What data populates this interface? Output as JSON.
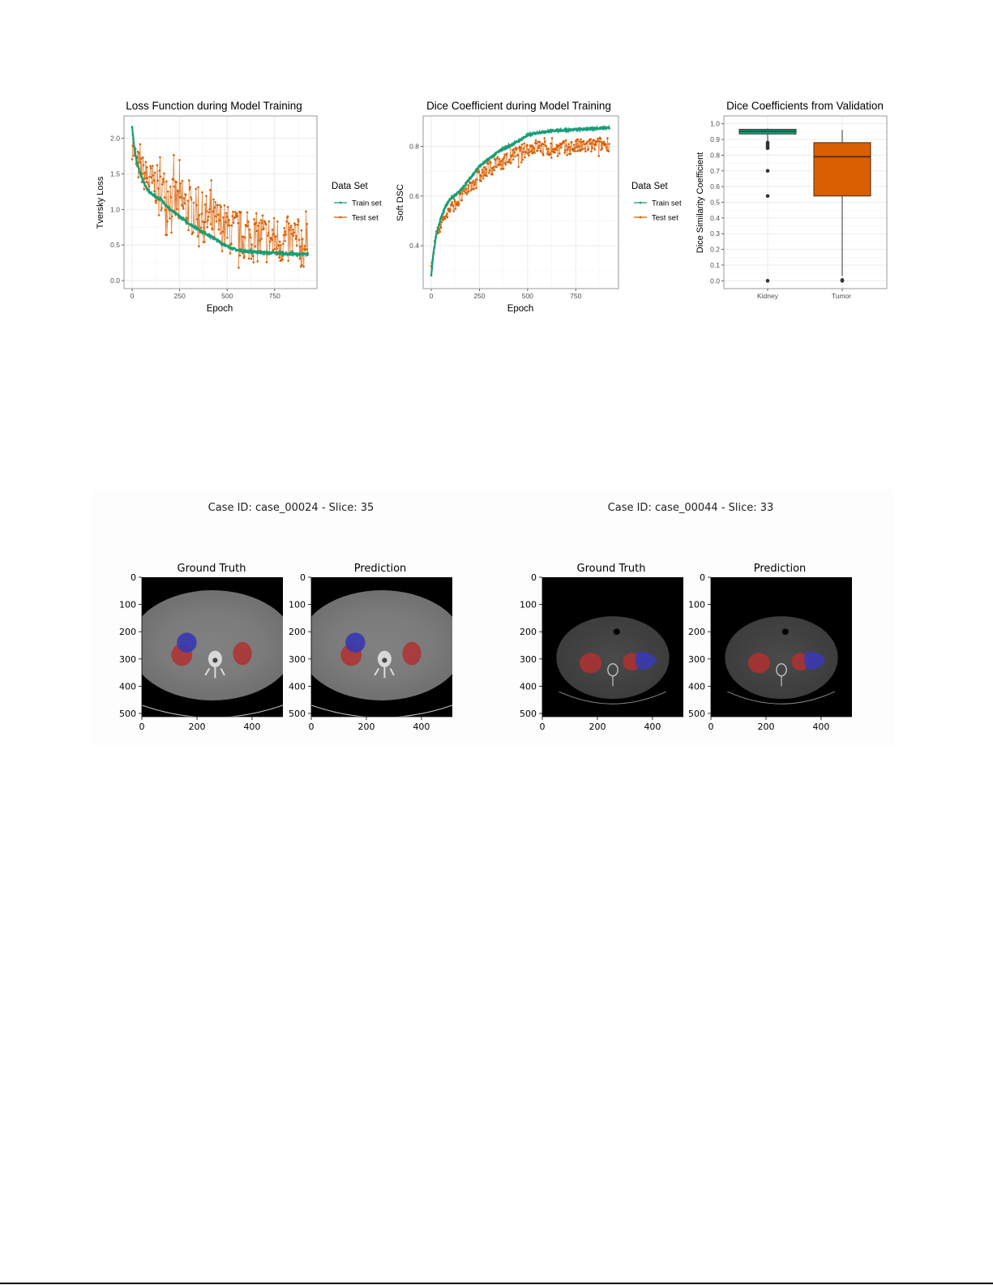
{
  "colors": {
    "train": "#1b9e77",
    "test": "#d95f02",
    "panel_border": "#999999",
    "grid_major": "#ebebeb",
    "grid_minor": "#f4f4f4",
    "axis_text": "#4d4d4d",
    "kidney_mask": "#b03030",
    "tumor_mask": "#3a3ab0"
  },
  "figure_top": {
    "charts": [
      {
        "title": "Loss Function during Model Training",
        "xlabel": "Epoch",
        "ylabel": "Tversky Loss",
        "legend_title": "Data Set",
        "legend": [
          "Train set",
          "Test set"
        ]
      },
      {
        "title": "Dice Coefficient during Model Training",
        "xlabel": "Epoch",
        "ylabel": "Soft DSC",
        "legend_title": "Data Set",
        "legend": [
          "Train set",
          "Test set"
        ]
      },
      {
        "title": "Dice Coefficients from Validation",
        "xlabel": "",
        "ylabel": "Dice Similarity Coefficient",
        "categories": [
          "Kidney",
          "Tumor"
        ]
      }
    ]
  },
  "figure_bottom": {
    "cases": [
      {
        "title": "Case ID: case_00024 - Slice: 35",
        "panels": [
          "Ground Truth",
          "Prediction"
        ],
        "yticks": [
          "0",
          "100",
          "200",
          "300",
          "400",
          "500"
        ],
        "xticks": [
          "0",
          "200",
          "400"
        ]
      },
      {
        "title": "Case ID: case_00044 - Slice: 33",
        "panels": [
          "Ground Truth",
          "Prediction"
        ],
        "yticks": [
          "0",
          "100",
          "200",
          "300",
          "400",
          "500"
        ],
        "xticks": [
          "0",
          "200",
          "400"
        ]
      }
    ]
  },
  "chart_data": [
    {
      "type": "line",
      "title": "Loss Function during Model Training",
      "xlabel": "Epoch",
      "ylabel": "Tversky Loss",
      "xlim": [
        0,
        930
      ],
      "ylim": [
        0,
        2.2
      ],
      "xticks": [
        0,
        250,
        500,
        750
      ],
      "yticks": [
        0.0,
        0.5,
        1.0,
        1.5,
        2.0
      ],
      "grid": true,
      "legend_title": "Data Set",
      "legend_position": "right",
      "series": [
        {
          "name": "Train set",
          "x": [
            0,
            10,
            25,
            50,
            75,
            100,
            150,
            200,
            250,
            300,
            350,
            400,
            450,
            500,
            550,
            600,
            650,
            700,
            750,
            800,
            850,
            900,
            925
          ],
          "values": [
            2.17,
            1.9,
            1.65,
            1.45,
            1.3,
            1.22,
            1.14,
            1.0,
            0.9,
            0.8,
            0.72,
            0.64,
            0.56,
            0.48,
            0.43,
            0.41,
            0.4,
            0.39,
            0.39,
            0.38,
            0.37,
            0.37,
            0.37
          ]
        },
        {
          "name": "Test set",
          "x": [
            0,
            10,
            25,
            50,
            75,
            100,
            150,
            200,
            250,
            300,
            350,
            400,
            450,
            500,
            550,
            600,
            650,
            700,
            750,
            800,
            850,
            900,
            925
          ],
          "values": [
            2.05,
            1.8,
            1.65,
            1.55,
            1.45,
            1.38,
            1.3,
            1.18,
            1.08,
            1.0,
            0.92,
            0.85,
            0.8,
            0.72,
            0.66,
            0.62,
            0.6,
            0.58,
            0.57,
            0.56,
            0.55,
            0.5,
            0.45
          ],
          "noise_amplitude": 0.35
        }
      ]
    },
    {
      "type": "line",
      "title": "Dice Coefficient during Model Training",
      "xlabel": "Epoch",
      "ylabel": "Soft DSC",
      "xlim": [
        0,
        930
      ],
      "ylim": [
        0.26,
        0.89
      ],
      "xticks": [
        0,
        250,
        500,
        750
      ],
      "yticks": [
        0.4,
        0.6,
        0.8
      ],
      "grid": true,
      "legend_title": "Data Set",
      "legend_position": "right",
      "series": [
        {
          "name": "Train set",
          "x": [
            0,
            10,
            25,
            50,
            75,
            100,
            150,
            200,
            250,
            300,
            350,
            400,
            450,
            500,
            550,
            600,
            650,
            700,
            750,
            800,
            850,
            900,
            925
          ],
          "values": [
            0.28,
            0.36,
            0.44,
            0.51,
            0.56,
            0.59,
            0.62,
            0.67,
            0.72,
            0.75,
            0.78,
            0.8,
            0.82,
            0.845,
            0.855,
            0.86,
            0.865,
            0.865,
            0.868,
            0.87,
            0.872,
            0.875,
            0.875
          ]
        },
        {
          "name": "Test set",
          "x": [
            0,
            10,
            25,
            50,
            75,
            100,
            150,
            200,
            250,
            300,
            350,
            400,
            450,
            500,
            550,
            600,
            650,
            700,
            750,
            800,
            850,
            900,
            925
          ],
          "values": [
            0.31,
            0.38,
            0.44,
            0.49,
            0.52,
            0.55,
            0.59,
            0.64,
            0.68,
            0.71,
            0.73,
            0.75,
            0.77,
            0.79,
            0.8,
            0.79,
            0.79,
            0.795,
            0.8,
            0.8,
            0.805,
            0.81,
            0.81
          ],
          "noise_amplitude": 0.03
        }
      ]
    },
    {
      "type": "box",
      "title": "Dice Coefficients from Validation",
      "xlabel": "",
      "ylabel": "Dice Similarity Coefficient",
      "ylim": [
        -0.05,
        1.05
      ],
      "yticks": [
        0.0,
        0.1,
        0.2,
        0.3,
        0.4,
        0.5,
        0.6,
        0.7,
        0.8,
        0.9,
        1.0
      ],
      "grid": true,
      "categories": [
        "Kidney",
        "Tumor"
      ],
      "boxes": [
        {
          "name": "Kidney",
          "min": 0.89,
          "q1": 0.935,
          "median": 0.952,
          "q3": 0.965,
          "max": 0.97,
          "outliers": [
            0.88,
            0.87,
            0.86,
            0.85,
            0.845,
            0.7,
            0.54,
            0.0
          ],
          "fill": "#1b9e77"
        },
        {
          "name": "Tumor",
          "min": 0.03,
          "q1": 0.54,
          "median": 0.79,
          "q3": 0.88,
          "max": 0.96,
          "outliers": [
            0.0,
            0.005
          ],
          "fill": "#d95f02"
        }
      ]
    }
  ]
}
